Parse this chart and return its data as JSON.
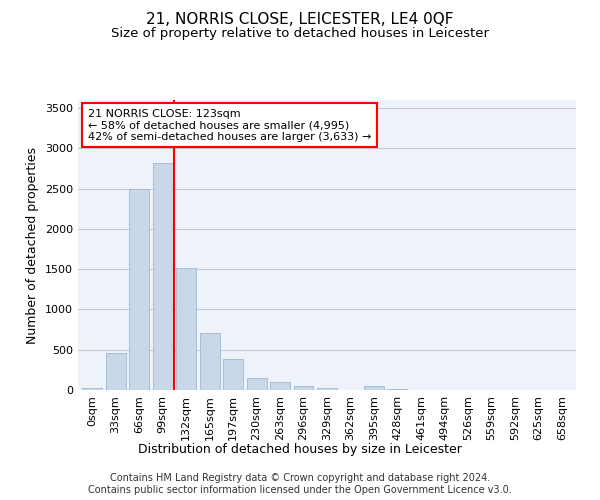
{
  "title": "21, NORRIS CLOSE, LEICESTER, LE4 0QF",
  "subtitle": "Size of property relative to detached houses in Leicester",
  "xlabel": "Distribution of detached houses by size in Leicester",
  "ylabel": "Number of detached properties",
  "bar_color": "#c8d8e8",
  "bar_edge_color": "#a0b8d0",
  "categories": [
    "0sqm",
    "33sqm",
    "66sqm",
    "99sqm",
    "132sqm",
    "165sqm",
    "197sqm",
    "230sqm",
    "263sqm",
    "296sqm",
    "329sqm",
    "362sqm",
    "395sqm",
    "428sqm",
    "461sqm",
    "494sqm",
    "526sqm",
    "559sqm",
    "592sqm",
    "625sqm",
    "658sqm"
  ],
  "values": [
    20,
    460,
    2500,
    2820,
    1520,
    710,
    390,
    155,
    100,
    55,
    20,
    5,
    50,
    15,
    5,
    2,
    2,
    2,
    2,
    2,
    2
  ],
  "ylim": [
    0,
    3600
  ],
  "yticks": [
    0,
    500,
    1000,
    1500,
    2000,
    2500,
    3000,
    3500
  ],
  "vline_x": 4.0,
  "annotation_text": "21 NORRIS CLOSE: 123sqm\n← 58% of detached houses are smaller (4,995)\n42% of semi-detached houses are larger (3,633) →",
  "annotation_box_color": "white",
  "annotation_box_edge_color": "red",
  "vline_color": "red",
  "footer_line1": "Contains HM Land Registry data © Crown copyright and database right 2024.",
  "footer_line2": "Contains public sector information licensed under the Open Government Licence v3.0.",
  "bg_color": "#eef2fa",
  "grid_color": "#c0c8d8",
  "title_fontsize": 11,
  "subtitle_fontsize": 9.5,
  "axis_label_fontsize": 9,
  "tick_fontsize": 8,
  "footer_fontsize": 7,
  "annotation_fontsize": 8
}
